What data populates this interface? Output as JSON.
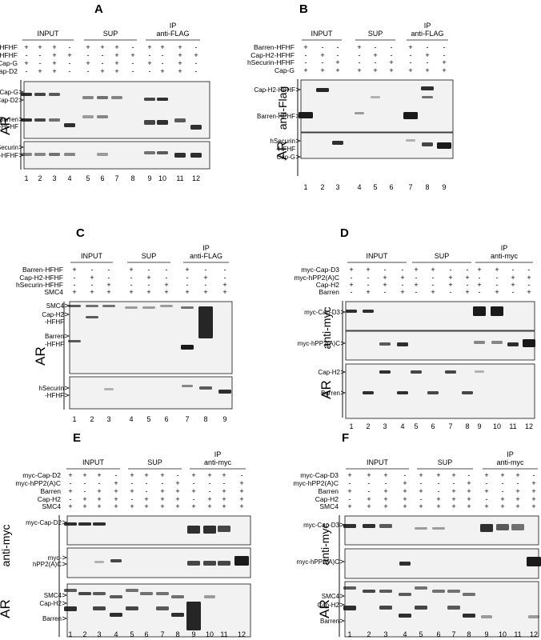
{
  "panels": [
    {
      "letter": "A",
      "groups": [
        "INPUT",
        "SUP",
        "IP",
        "anti-FLAG"
      ],
      "rows": [
        {
          "label": "Barren-HFHF",
          "signs": [
            "+",
            "+",
            "+",
            "-",
            "+",
            "+",
            "+",
            "-",
            "+",
            "+",
            "+",
            "-"
          ]
        },
        {
          "label": "hSecurin-HFHF",
          "signs": [
            "-",
            "-",
            "+",
            "+",
            "-",
            "-",
            "+",
            "+",
            "-",
            "-",
            "+",
            "+"
          ]
        },
        {
          "label": "Cap-G",
          "signs": [
            "+",
            "-",
            "+",
            "-",
            "+",
            "-",
            "+",
            "-",
            "+",
            "-",
            "+",
            "-"
          ]
        },
        {
          "label": "Cap-D2",
          "signs": [
            "-",
            "+",
            "+",
            "-",
            "-",
            "+",
            "+",
            "-",
            "-",
            "+",
            "+",
            "-"
          ]
        }
      ],
      "blocks": [
        {
          "tag": "AR",
          "markers": [
            "Cap-G",
            "Cap-D2",
            "Barren",
            "-HFHF"
          ]
        },
        {
          "tag": "",
          "markers": [
            "hSecurin",
            "-HFHF"
          ]
        }
      ],
      "lanes": [
        "1",
        "2",
        "3",
        "4",
        "5",
        "6",
        "7",
        "8",
        "9",
        "10",
        "11",
        "12"
      ]
    },
    {
      "letter": "B",
      "groups": [
        "INPUT",
        "SUP",
        "IP",
        "anti-FLAG"
      ],
      "rows": [
        {
          "label": "Barren-HFHF",
          "signs": [
            "+",
            "-",
            "-",
            "+",
            "-",
            "-",
            "+",
            "-",
            "-"
          ]
        },
        {
          "label": "Cap-H2-HFHF",
          "signs": [
            "-",
            "+",
            "-",
            "-",
            "+",
            "-",
            "-",
            "+",
            "-"
          ]
        },
        {
          "label": "hSecurin-HFHF",
          "signs": [
            "-",
            "-",
            "+",
            "-",
            "-",
            "+",
            "-",
            "-",
            "+"
          ]
        },
        {
          "label": "Cap-G",
          "signs": [
            "+",
            "+",
            "+",
            "+",
            "+",
            "+",
            "+",
            "+",
            "+"
          ]
        }
      ],
      "blocks": [
        {
          "tag": "anti-Flag",
          "markers": [
            "Cap-H2-HFHF",
            "Barren-HFHF"
          ]
        },
        {
          "tag": "AR",
          "markers": [
            "hSecurin",
            "-HFHF",
            "Cap-G"
          ]
        }
      ],
      "lanes": [
        "1",
        "2",
        "3",
        "4",
        "5",
        "6",
        "7",
        "8",
        "9"
      ]
    },
    {
      "letter": "C",
      "groups": [
        "INPUT",
        "SUP",
        "IP",
        "anti-FLAG"
      ],
      "rows": [
        {
          "label": "Barren-HFHF",
          "signs": [
            "+",
            "-",
            "-",
            "+",
            "-",
            "-",
            "+",
            "-",
            "-"
          ]
        },
        {
          "label": "Cap-H2-HFHF",
          "signs": [
            "-",
            "+",
            "-",
            "-",
            "+",
            "-",
            "-",
            "+",
            "-"
          ]
        },
        {
          "label": "hSecurin-HFHF",
          "signs": [
            "-",
            "-",
            "+",
            "-",
            "-",
            "+",
            "-",
            "-",
            "+"
          ]
        },
        {
          "label": "SMC4",
          "signs": [
            "+",
            "+",
            "+",
            "+",
            "+",
            "+",
            "+",
            "+",
            "+"
          ]
        }
      ],
      "blocks": [
        {
          "tag": "AR",
          "markers": [
            "SMC4",
            "Cap-H2",
            "-HFHF",
            "Barren",
            "-HFHF"
          ]
        },
        {
          "tag": "",
          "markers": [
            "hSecurin",
            "-HFHF"
          ]
        }
      ],
      "lanes": [
        "1",
        "2",
        "3",
        "4",
        "5",
        "6",
        "7",
        "8",
        "9"
      ]
    },
    {
      "letter": "D",
      "groups": [
        "INPUT",
        "SUP",
        "IP",
        "anti-myc"
      ],
      "rows": [
        {
          "label": "myc-Cap-D3",
          "signs": [
            "+",
            "+",
            "-",
            "-",
            "+",
            "+",
            "-",
            "-",
            "+",
            "+",
            "-",
            "-"
          ]
        },
        {
          "label": "myc-hPP2(A)C",
          "signs": [
            "-",
            "-",
            "+",
            "+",
            "-",
            "-",
            "+",
            "+",
            "-",
            "-",
            "+",
            "+"
          ]
        },
        {
          "label": "Cap-H2",
          "signs": [
            "+",
            "-",
            "+",
            "-",
            "+",
            "-",
            "+",
            "-",
            "+",
            "-",
            "+",
            "-"
          ]
        },
        {
          "label": "Barren",
          "signs": [
            "-",
            "+",
            "-",
            "+",
            "-",
            "+",
            "-",
            "+",
            "-",
            "+",
            "-",
            "+"
          ]
        }
      ],
      "blocks": [
        {
          "tag": "anti-myc",
          "markers": [
            "myc-Cap-D3"
          ]
        },
        {
          "tag": "",
          "markers": [
            "myc-hPP2(A)C"
          ]
        },
        {
          "tag": "AR",
          "markers": [
            "Cap-H2",
            "Barren"
          ]
        }
      ],
      "lanes": [
        "1",
        "2",
        "3",
        "4",
        "5",
        "6",
        "7",
        "8",
        "9",
        "10",
        "11",
        "12"
      ]
    },
    {
      "letter": "E",
      "groups": [
        "INPUT",
        "SUP",
        "IP",
        "anti-myc"
      ],
      "rows": [
        {
          "label": "myc-Cap-D2",
          "signs": [
            "+",
            "+",
            "+",
            "-",
            "+",
            "+",
            "+",
            "-",
            "+",
            "+",
            "+",
            "-"
          ]
        },
        {
          "label": "myc-hPP2(A)C",
          "signs": [
            "-",
            "-",
            "-",
            "+",
            "-",
            "-",
            "-",
            "+",
            "-",
            "-",
            "-",
            "+"
          ]
        },
        {
          "label": "Barren",
          "signs": [
            "+",
            "-",
            "+",
            "+",
            "+",
            "-",
            "+",
            "+",
            "+",
            "-",
            "+",
            "+"
          ]
        },
        {
          "label": "Cap-H2",
          "signs": [
            "-",
            "+",
            "+",
            "+",
            "-",
            "+",
            "+",
            "+",
            "-",
            "+",
            "+",
            "+"
          ]
        },
        {
          "label": "SMC4",
          "signs": [
            "+",
            "+",
            "+",
            "+",
            "+",
            "+",
            "+",
            "+",
            "+",
            "+",
            "+",
            "+"
          ]
        }
      ],
      "blocks": [
        {
          "tag": "anti-myc",
          "markers": [
            "myc-Cap-D2"
          ]
        },
        {
          "tag": "",
          "markers": [
            "myc-",
            "hPP2(A)C"
          ]
        },
        {
          "tag": "AR",
          "markers": [
            "SMC4",
            "Cap-H2",
            "Barren"
          ]
        }
      ],
      "lanes": [
        "1",
        "2",
        "3",
        "4",
        "5",
        "6",
        "7",
        "8",
        "9",
        "10",
        "11",
        "12"
      ]
    },
    {
      "letter": "F",
      "groups": [
        "INPUT",
        "SUP",
        "IP",
        "anti-myc"
      ],
      "rows": [
        {
          "label": "myc-Cap-D3",
          "signs": [
            "+",
            "+",
            "+",
            "-",
            "+",
            "+",
            "+",
            "-",
            "+",
            "+",
            "+",
            "-"
          ]
        },
        {
          "label": "myc-hPP2(A)C",
          "signs": [
            "-",
            "-",
            "-",
            "+",
            "-",
            "-",
            "-",
            "+",
            "-",
            "-",
            "-",
            "+"
          ]
        },
        {
          "label": "Barren",
          "signs": [
            "+",
            "-",
            "+",
            "+",
            "+",
            "-",
            "+",
            "+",
            "+",
            "-",
            "+",
            "+"
          ]
        },
        {
          "label": "Cap-H2",
          "signs": [
            "-",
            "+",
            "+",
            "+",
            "-",
            "+",
            "+",
            "+",
            "-",
            "+",
            "+",
            "+"
          ]
        },
        {
          "label": "SMC4",
          "signs": [
            "+",
            "+",
            "+",
            "+",
            "+",
            "+",
            "+",
            "+",
            "+",
            "+",
            "+",
            "+"
          ]
        }
      ],
      "blocks": [
        {
          "tag": "anti-myc",
          "markers": [
            "myc-Cap-D3"
          ]
        },
        {
          "tag": "",
          "markers": [
            "myc-hPP2(A)C"
          ]
        },
        {
          "tag": "AR",
          "markers": [
            "SMC4",
            "Cap-H2",
            "Barren"
          ]
        }
      ],
      "lanes": [
        "1",
        "2",
        "3",
        "4",
        "5",
        "6",
        "7",
        "8",
        "9",
        "10",
        "11",
        "12"
      ]
    }
  ],
  "colors": {
    "ink": "#111111",
    "blot_bg": "#f2f2f2",
    "band": "#1a1a1a"
  }
}
